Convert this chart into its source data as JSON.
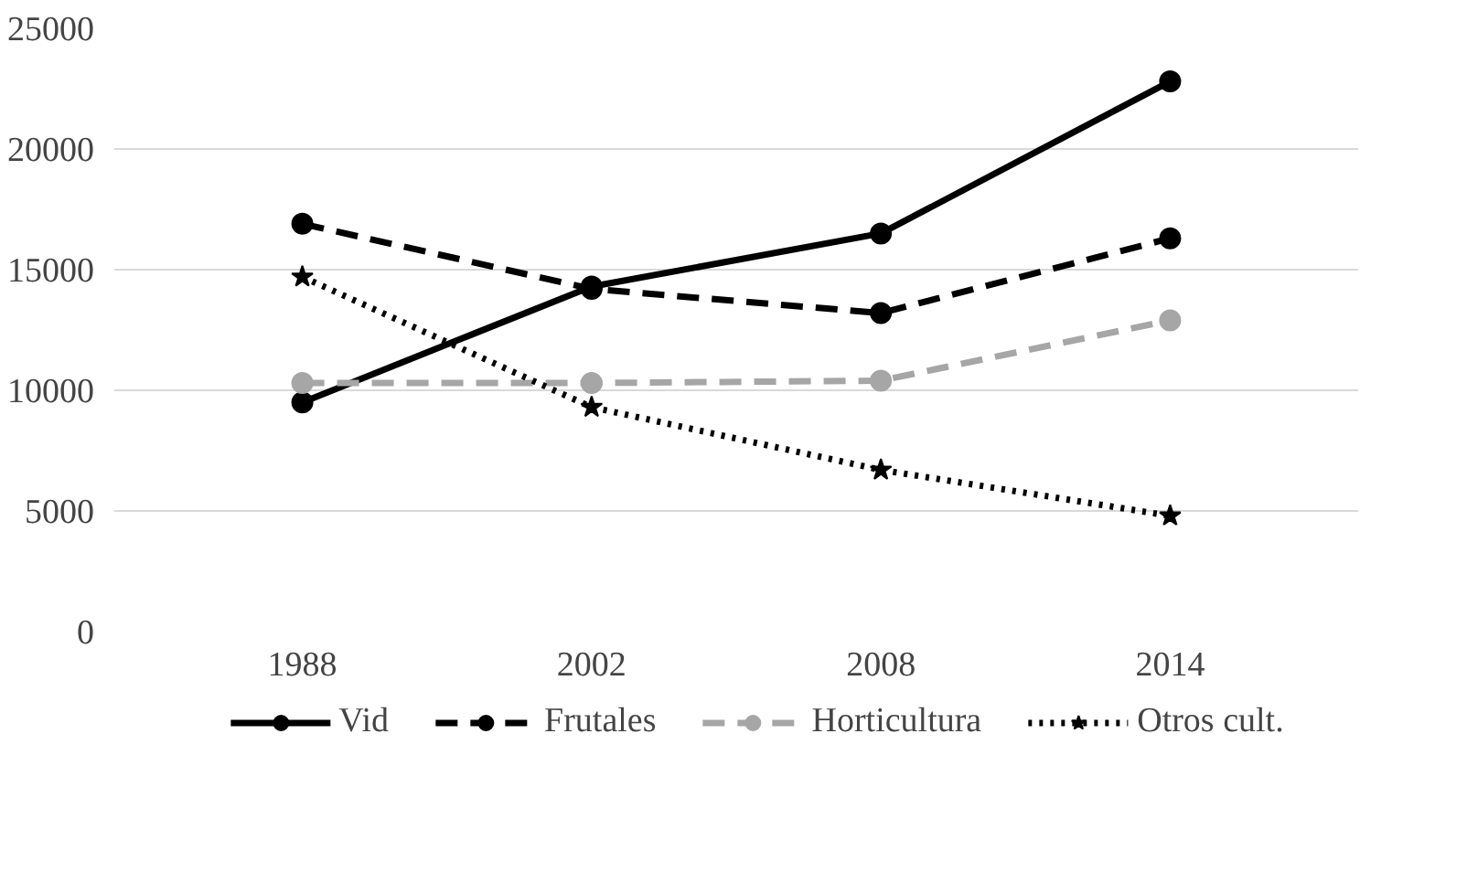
{
  "chart_data": {
    "type": "line",
    "categories": [
      "1988",
      "2002",
      "2008",
      "2014"
    ],
    "series": [
      {
        "name": "Vid",
        "color": "#000000",
        "line_style": "solid",
        "marker": "circle",
        "values": [
          9500,
          14300,
          16500,
          22800
        ]
      },
      {
        "name": "Frutales",
        "color": "#000000",
        "line_style": "dashed",
        "marker": "circle",
        "values": [
          16900,
          14200,
          13200,
          16300
        ]
      },
      {
        "name": "Horticultura",
        "color": "#a6a6a6",
        "line_style": "dashed",
        "marker": "circle",
        "values": [
          10300,
          10300,
          10400,
          12900
        ]
      },
      {
        "name": "Otros cult.",
        "color": "#000000",
        "line_style": "dotted",
        "marker": "star",
        "values": [
          14700,
          9300,
          6700,
          4800
        ]
      }
    ],
    "ylim": [
      0,
      25000
    ],
    "yticks": [
      0,
      5000,
      10000,
      15000,
      20000,
      25000
    ],
    "grid": "y",
    "legend": "bottom"
  }
}
